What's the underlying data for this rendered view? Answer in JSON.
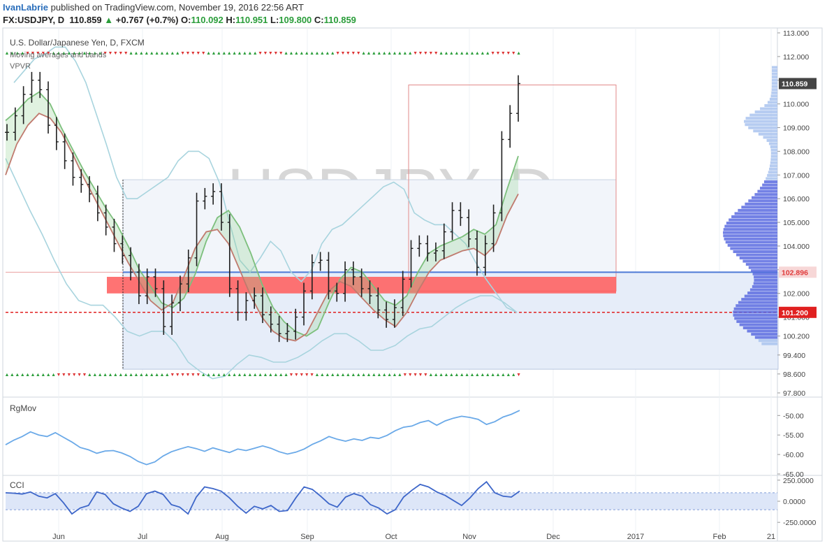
{
  "header": {
    "author": "IvanLabrie",
    "published_text": " published on TradingView.com, November 19, 2016 22:56 ART",
    "symbol": "FX:USDJPY, D",
    "last": "110.859",
    "change": "+0.767 (+0.7%)",
    "open_label": "O:",
    "open": "110.092",
    "high_label": "H:",
    "high": "110.951",
    "low_label": "L:",
    "low": "109.800",
    "close_label": "C:",
    "close": "110.859"
  },
  "colors": {
    "up": "#2a9d3a",
    "accent": "#2a6ebb",
    "bars": "#1f1f1f",
    "ma_fast": "#7cbf7c",
    "ma_slow": "#c07a6e",
    "bands": "#a8d4de",
    "zone": "#ff5a5a",
    "volume": "#5a6be0",
    "rgmov": "#6aa9e8",
    "cci": "#3d66c9"
  },
  "chart_data": [
    {
      "type": "line",
      "title": "U.S. Dollar/Japanese Yen, D, FXCM",
      "watermark_symbol": "USDJPY, D",
      "watermark_name": "U.S. Dollar/Japanese Yen",
      "indicators": [
        "Moving averages and bands",
        "VPVR"
      ],
      "ylim": [
        97.8,
        113.0
      ],
      "yticks": [
        "113.000",
        "112.000",
        "111.000",
        "110.000",
        "109.000",
        "108.000",
        "107.000",
        "106.000",
        "105.000",
        "104.000",
        "103.000",
        "102.000",
        "101.000",
        "100.200",
        "99.400",
        "98.600",
        "97.800"
      ],
      "xticks": [
        "Jun",
        "Jul",
        "Aug",
        "Sep",
        "Oct",
        "Nov",
        "Dec",
        "2017",
        "Feb",
        "21"
      ],
      "price_labels": {
        "last": "110.859",
        "level_1": "102.896",
        "level_2": "101.200"
      },
      "close_series": [
        108.8,
        109.5,
        110.4,
        111.0,
        110.6,
        109.1,
        108.4,
        107.6,
        106.9,
        106.6,
        106.2,
        105.4,
        104.8,
        104.1,
        103.6,
        102.9,
        101.9,
        102.7,
        102.2,
        100.6,
        101.6,
        102.4,
        103.5,
        105.9,
        106.1,
        106.3,
        105.0,
        102.2,
        101.2,
        101.7,
        101.9,
        101.1,
        100.7,
        100.3,
        100.4,
        101.0,
        102.1,
        103.3,
        103.4,
        102.1,
        102.0,
        103.0,
        102.7,
        102.2,
        101.9,
        101.3,
        100.9,
        101.4,
        102.6,
        103.9,
        104.1,
        103.7,
        103.8,
        104.6,
        105.5,
        105.2,
        104.3,
        103.1,
        104.1,
        105.4,
        108.5,
        109.6,
        110.86
      ],
      "ma_fast": [
        109.3,
        109.7,
        110.2,
        110.5,
        110.0,
        109.0,
        108.1,
        107.2,
        106.4,
        105.6,
        104.9,
        104.0,
        103.0,
        102.3,
        101.6,
        101.4,
        101.8,
        102.8,
        104.2,
        105.2,
        105.5,
        104.8,
        103.7,
        102.4,
        101.4,
        100.8,
        100.4,
        100.2,
        100.5,
        101.6,
        102.6,
        103.1,
        102.9,
        102.3,
        101.7,
        101.5,
        101.9,
        102.9,
        103.7,
        104.0,
        104.2,
        104.4,
        104.7,
        104.5,
        104.9,
        106.4,
        107.8
      ],
      "ma_slow": [
        107.0,
        108.3,
        109.1,
        109.6,
        109.4,
        108.8,
        107.9,
        106.9,
        106.0,
        105.1,
        104.2,
        103.3,
        102.5,
        101.7,
        101.3,
        101.6,
        102.7,
        103.9,
        104.6,
        104.7,
        104.1,
        103.0,
        101.9,
        101.0,
        100.4,
        100.1,
        100.0,
        100.3,
        101.2,
        102.1,
        102.5,
        102.3,
        101.8,
        101.3,
        100.9,
        100.6,
        101.2,
        102.1,
        102.9,
        103.4,
        103.6,
        103.8,
        103.9,
        103.6,
        104.1,
        105.3,
        106.2
      ],
      "band_upper": [
        110.9,
        111.4,
        111.9,
        112.1,
        112.4,
        112.4,
        111.8,
        110.9,
        109.6,
        108.3,
        106.9,
        106.0,
        106.0,
        106.3,
        106.6,
        106.9,
        107.6,
        108.0,
        108.0,
        107.7,
        106.7,
        105.0,
        103.4,
        102.9,
        103.5,
        104.2,
        103.8,
        102.9,
        102.5,
        103.0,
        104.1,
        104.7,
        104.9,
        105.3,
        105.7,
        106.1,
        106.5,
        106.7,
        106.4,
        105.4,
        105.1,
        104.9,
        104.9,
        104.5,
        104.1,
        103.3,
        102.6,
        102.0,
        101.4,
        101.2
      ],
      "band_lower": [
        107.7,
        106.6,
        105.5,
        104.5,
        103.4,
        102.4,
        101.7,
        101.5,
        101.5,
        101.0,
        100.4,
        100.2,
        100.4,
        100.4,
        99.9,
        99.1,
        98.7,
        98.4,
        98.5,
        99.0,
        99.4,
        99.3,
        99.1,
        99.1,
        99.3,
        99.6,
        100.0,
        100.3,
        100.3,
        100.0,
        99.6,
        99.6,
        99.8,
        100.2,
        100.5,
        100.6,
        101.0,
        101.4,
        101.7,
        101.9,
        101.9,
        101.6,
        101.2
      ],
      "volume_profile_rows": 88
    },
    {
      "type": "line",
      "title": "RgMov",
      "ylim": [
        -65,
        -46
      ],
      "yticks": [
        "-50.00",
        "-55.00",
        "-60.00",
        "-65.00"
      ],
      "values": [
        -57.5,
        -56.3,
        -55.4,
        -54.2,
        -55.0,
        -55.4,
        -54.4,
        -55.6,
        -56.8,
        -58.2,
        -58.8,
        -59.7,
        -59.1,
        -59.0,
        -59.6,
        -60.5,
        -61.8,
        -62.6,
        -61.9,
        -60.4,
        -59.3,
        -58.6,
        -58.0,
        -58.5,
        -59.2,
        -58.3,
        -58.9,
        -59.5,
        -58.6,
        -59.0,
        -58.4,
        -57.8,
        -58.4,
        -59.3,
        -59.9,
        -59.4,
        -58.6,
        -57.4,
        -56.5,
        -55.4,
        -56.1,
        -56.6,
        -56.0,
        -56.4,
        -55.6,
        -55.9,
        -55.1,
        -53.9,
        -53.0,
        -52.7,
        -51.8,
        -51.3,
        -52.5,
        -51.4,
        -50.7,
        -50.2,
        -50.5,
        -51.0,
        -52.3,
        -51.6,
        -50.4,
        -49.7,
        -48.7
      ]
    },
    {
      "type": "line",
      "title": "CCI",
      "ylim": [
        -290,
        290
      ],
      "yticks": [
        "250.0000",
        "0.0000",
        "-250.0000"
      ],
      "bands": [
        100,
        -100
      ],
      "values": [
        100,
        95,
        85,
        110,
        60,
        40,
        90,
        -20,
        -150,
        -80,
        -50,
        110,
        80,
        -30,
        -80,
        -120,
        -60,
        90,
        120,
        80,
        -40,
        -70,
        -150,
        50,
        170,
        150,
        120,
        40,
        -60,
        -140,
        -60,
        -90,
        -50,
        -120,
        -110,
        40,
        170,
        140,
        60,
        -30,
        -70,
        50,
        90,
        60,
        -40,
        -80,
        -150,
        -100,
        50,
        130,
        200,
        170,
        110,
        70,
        10,
        -50,
        40,
        150,
        230,
        100,
        60,
        50,
        120
      ]
    }
  ]
}
